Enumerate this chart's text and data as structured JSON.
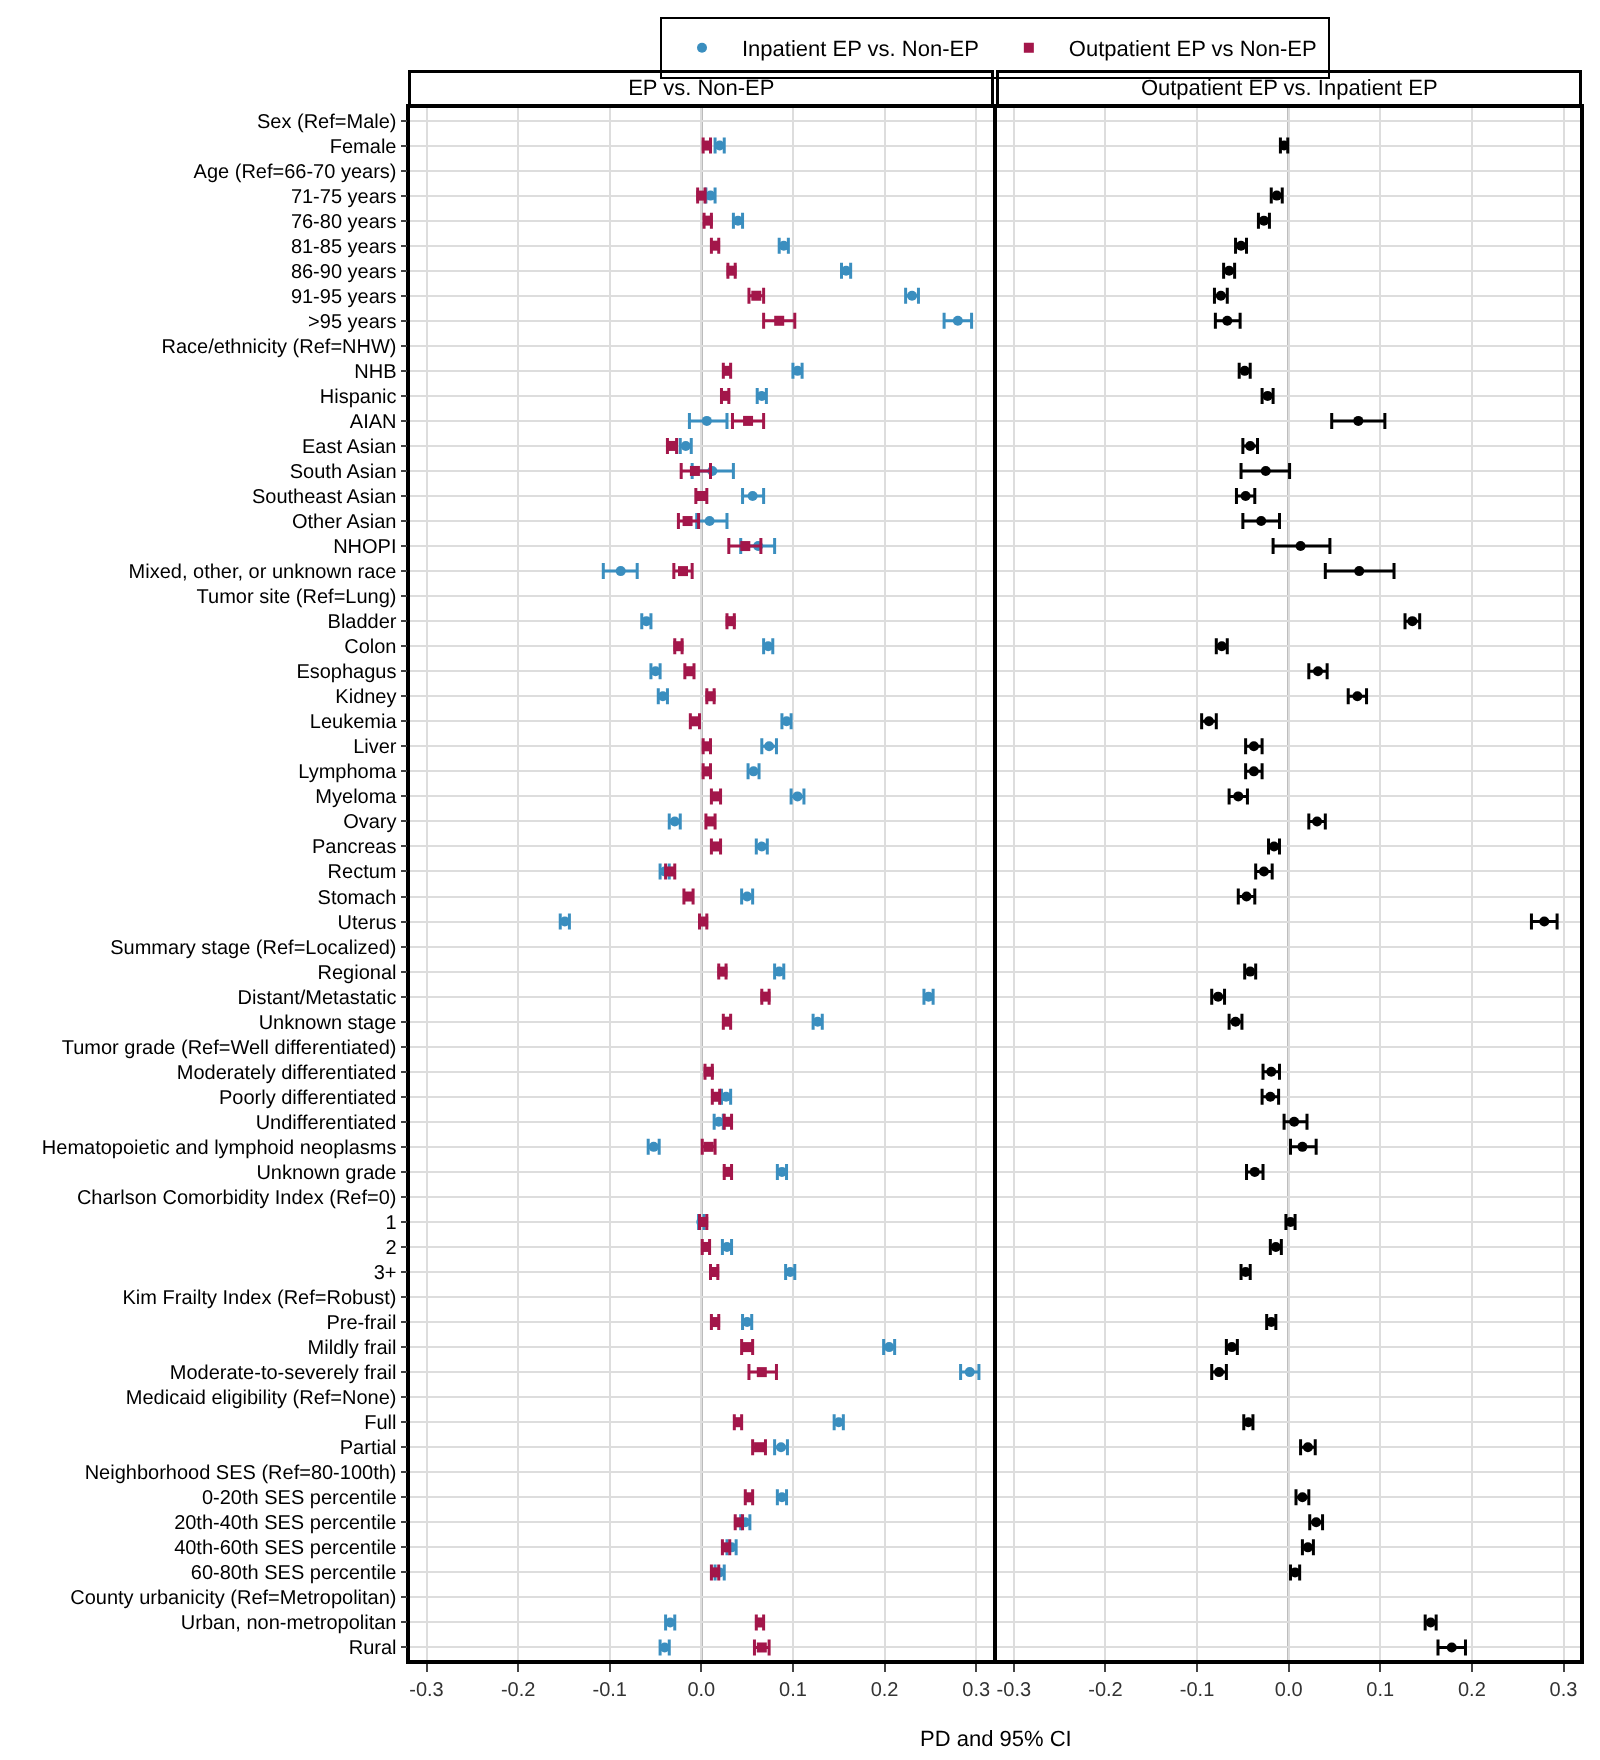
{
  "chart_data": [
    {
      "type": "scatter",
      "title": "EP vs. Non-EP",
      "xlabel": "PD and 95% CI",
      "orientation": "horizontal",
      "legend": "top",
      "grid": true,
      "categories": [
        "Sex (Ref=Male)",
        "Female",
        "Age (Ref=66-70 years)",
        "71-75 years",
        "76-80 years",
        "81-85 years",
        "86-90 years",
        "91-95 years",
        ">95 years",
        "Race/ethnicity (Ref=NHW)",
        "NHB",
        "Hispanic",
        "AIAN",
        "East Asian",
        "South Asian",
        "Southeast Asian",
        "Other Asian",
        "NHOPI",
        "Mixed, other, or unknown race",
        "Tumor site (Ref=Lung)",
        "Bladder",
        "Colon",
        "Esophagus",
        "Kidney",
        "Leukemia",
        "Liver",
        "Lymphoma",
        "Myeloma",
        "Ovary",
        "Pancreas",
        "Rectum",
        "Stomach",
        "Uterus",
        "Summary stage (Ref=Localized)",
        "Regional",
        "Distant/Metastatic",
        "Unknown stage",
        "Tumor grade (Ref=Well differentiated)",
        "Moderately differentiated",
        "Poorly differentiated",
        "Undifferentiated",
        "Hematopoietic and lymphoid neoplasms",
        "Unknown grade",
        "Charlson Comorbidity Index (Ref=0)",
        "1",
        "2",
        "3+",
        "Kim Frailty Index (Ref=Robust)",
        "Pre-frail",
        "Mildly frail",
        "Moderate-to-severely frail",
        "Medicaid eligibility (Ref=None)",
        "Full",
        "Partial",
        "Neighborhood SES (Ref=80-100th)",
        "0-20th SES percentile",
        "20th-40th SES percentile",
        "40th-60th SES percentile",
        "60-80th SES percentile",
        "County urbanicity (Ref=Metropolitan)",
        "Urban, non-metropolitan",
        "Rural"
      ],
      "xlim": [
        -0.318,
        0.318
      ],
      "xticks": [
        -0.3,
        -0.2,
        -0.1,
        {
          "value": 0,
          "label": "0.0"
        },
        0.1,
        0.2,
        0.3
      ],
      "ref_lines": [
        {
          "axis": "x",
          "value": 0,
          "color": "#808080"
        }
      ],
      "series": [
        {
          "name": "Inpatient EP vs. Non-EP",
          "color": "#3a8ebf",
          "marker": "circle",
          "values": [
            null,
            0.02,
            null,
            0.01,
            0.04,
            0.09,
            0.158,
            0.23,
            0.28,
            null,
            0.105,
            0.066,
            0.006,
            -0.017,
            0.012,
            0.056,
            0.009,
            0.062,
            -0.088,
            null,
            -0.06,
            0.073,
            -0.05,
            -0.042,
            0.093,
            0.074,
            0.057,
            0.105,
            -0.029,
            0.066,
            -0.04,
            0.05,
            -0.149,
            null,
            0.085,
            0.248,
            0.127,
            null,
            null,
            0.027,
            0.019,
            -0.052,
            0.088,
            null,
            0.0,
            0.028,
            0.097,
            null,
            0.05,
            0.205,
            0.293,
            null,
            0.15,
            0.087,
            null,
            0.088,
            0.048,
            0.033,
            0.02,
            null,
            -0.034,
            -0.04
          ],
          "errors": [
            null,
            0.005,
            null,
            0.005,
            0.005,
            0.005,
            0.005,
            0.007,
            [
              0.265,
              0.295
            ],
            null,
            0.005,
            0.005,
            [
              -0.013,
              0.028
            ],
            0.006,
            [
              -0.01,
              0.035
            ],
            [
              0.045,
              0.068
            ],
            [
              -0.005,
              0.028
            ],
            [
              0.043,
              0.08
            ],
            [
              -0.107,
              -0.07
            ],
            null,
            0.005,
            0.005,
            0.005,
            0.005,
            0.005,
            0.008,
            0.006,
            0.007,
            0.006,
            0.006,
            0.005,
            0.006,
            0.005,
            null,
            0.005,
            0.005,
            0.005,
            null,
            null,
            0.005,
            0.005,
            0.006,
            0.005,
            null,
            0.003,
            0.005,
            0.005,
            null,
            0.005,
            0.006,
            0.01,
            null,
            0.005,
            0.007,
            null,
            0.005,
            0.005,
            0.005,
            0.005,
            null,
            0.005,
            0.005
          ]
        },
        {
          "name": "Outpatient EP vs Non-EP",
          "color": "#a3164a",
          "marker": "square",
          "values": [
            null,
            0.006,
            null,
            0.0,
            0.007,
            0.015,
            0.033,
            0.06,
            0.085,
            null,
            0.028,
            0.026,
            0.051,
            -0.032,
            -0.007,
            0.0,
            -0.015,
            0.048,
            -0.02,
            null,
            0.032,
            -0.025,
            -0.013,
            0.01,
            -0.007,
            0.006,
            0.006,
            0.016,
            0.01,
            0.016,
            -0.034,
            -0.014,
            0.002,
            null,
            0.023,
            0.07,
            0.028,
            null,
            0.008,
            0.016,
            0.029,
            0.008,
            0.029,
            null,
            0.002,
            0.005,
            0.014,
            null,
            0.015,
            0.05,
            0.066,
            null,
            0.04,
            0.063,
            null,
            0.052,
            0.041,
            0.027,
            0.015,
            null,
            0.064,
            0.066
          ],
          "errors": [
            null,
            0.004,
            null,
            0.004,
            0.004,
            0.004,
            0.004,
            0.008,
            0.017,
            null,
            0.004,
            0.004,
            0.017,
            0.005,
            [
              -0.022,
              0.01
            ],
            0.006,
            [
              -0.025,
              -0.003
            ],
            [
              0.03,
              0.065
            ],
            0.01,
            null,
            0.004,
            0.004,
            0.005,
            0.004,
            0.005,
            0.004,
            0.004,
            0.005,
            0.005,
            0.005,
            0.005,
            0.005,
            0.004,
            null,
            0.004,
            0.004,
            0.004,
            null,
            0.004,
            0.004,
            0.004,
            0.007,
            0.004,
            null,
            0.004,
            0.004,
            0.004,
            null,
            0.004,
            0.006,
            [
              0.052,
              0.082
            ],
            null,
            0.004,
            0.007,
            null,
            0.004,
            0.004,
            0.004,
            0.004,
            null,
            0.004,
            0.008
          ]
        }
      ]
    },
    {
      "type": "scatter",
      "title": "Outpatient EP vs. Inpatient EP",
      "orientation": "horizontal",
      "grid": true,
      "tick_labels": "x",
      "xlim": [
        -0.318,
        0.318
      ],
      "xticks": [
        -0.3,
        -0.2,
        -0.1,
        {
          "value": 0,
          "label": "0.0"
        },
        0.1,
        0.2,
        0.3
      ],
      "ref_lines": [
        {
          "axis": "x",
          "value": 0,
          "color": "#808080"
        }
      ],
      "series": [
        {
          "color": "#000000",
          "marker": "circle",
          "values": [
            null,
            -0.005,
            null,
            -0.013,
            -0.027,
            -0.052,
            -0.065,
            -0.074,
            -0.067,
            null,
            -0.048,
            -0.023,
            0.076,
            -0.042,
            -0.025,
            -0.047,
            -0.03,
            0.013,
            0.077,
            null,
            0.135,
            -0.073,
            0.032,
            0.075,
            -0.087,
            -0.038,
            -0.038,
            -0.055,
            0.031,
            -0.016,
            -0.027,
            -0.046,
            0.279,
            null,
            -0.042,
            -0.077,
            -0.058,
            null,
            -0.019,
            -0.02,
            0.006,
            0.015,
            -0.037,
            null,
            0.002,
            -0.014,
            -0.047,
            null,
            -0.019,
            -0.062,
            -0.076,
            null,
            -0.044,
            0.021,
            null,
            0.015,
            0.03,
            0.021,
            0.007,
            null,
            0.155,
            0.178
          ],
          "errors": [
            null,
            0.004,
            null,
            0.006,
            0.006,
            0.006,
            0.006,
            0.007,
            [
              -0.08,
              -0.053
            ],
            null,
            0.006,
            0.006,
            [
              0.047,
              0.105
            ],
            0.008,
            [
              -0.052,
              0.001
            ],
            0.01,
            0.02,
            [
              -0.017,
              0.045
            ],
            [
              0.04,
              0.115
            ],
            null,
            0.008,
            0.006,
            0.01,
            0.01,
            0.008,
            0.009,
            0.009,
            0.01,
            0.009,
            0.006,
            0.009,
            0.009,
            0.014,
            null,
            0.006,
            0.007,
            0.007,
            null,
            0.009,
            0.009,
            [
              -0.005,
              0.02
            ],
            [
              0.002,
              0.03
            ],
            0.009,
            null,
            0.005,
            0.006,
            0.005,
            null,
            0.005,
            0.006,
            0.008,
            null,
            0.005,
            0.008,
            null,
            0.007,
            0.007,
            0.006,
            0.005,
            null,
            0.006,
            0.015
          ]
        }
      ]
    }
  ]
}
